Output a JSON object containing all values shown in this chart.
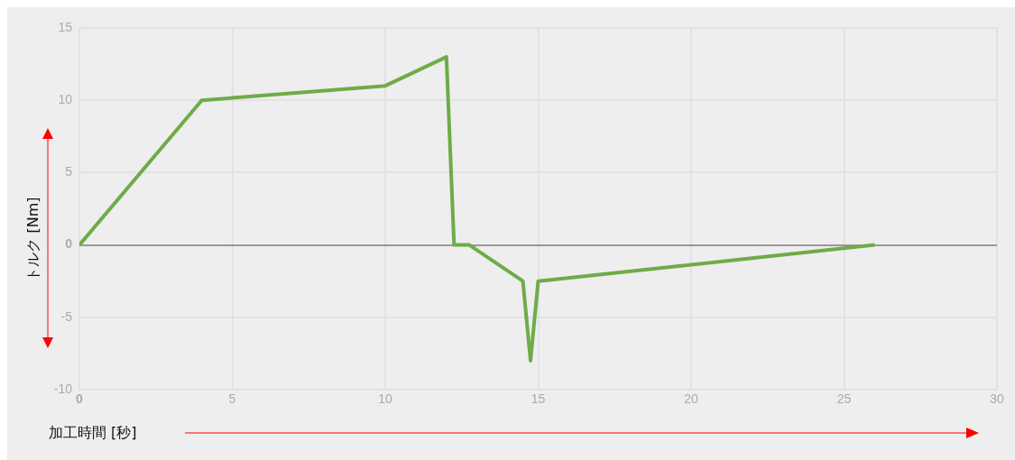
{
  "chart_data": {
    "type": "line",
    "xlabel": "加工時間 [秒]",
    "ylabel": "トルク [Nm]",
    "x": [
      0,
      4,
      10,
      12,
      12.25,
      12.75,
      14.5,
      14.75,
      15,
      26
    ],
    "values": [
      0,
      10,
      11,
      13,
      0,
      0,
      -2.5,
      -8,
      -2.5,
      0
    ],
    "color": "#6eac47",
    "xlim": [
      0,
      30
    ],
    "ylim": [
      -10,
      15
    ],
    "xticks": [
      0,
      5,
      10,
      15,
      20,
      25,
      30
    ],
    "yticks": [
      -10,
      -5,
      0,
      5,
      10,
      15
    ],
    "grid": true,
    "marker": "none",
    "legend": false
  }
}
